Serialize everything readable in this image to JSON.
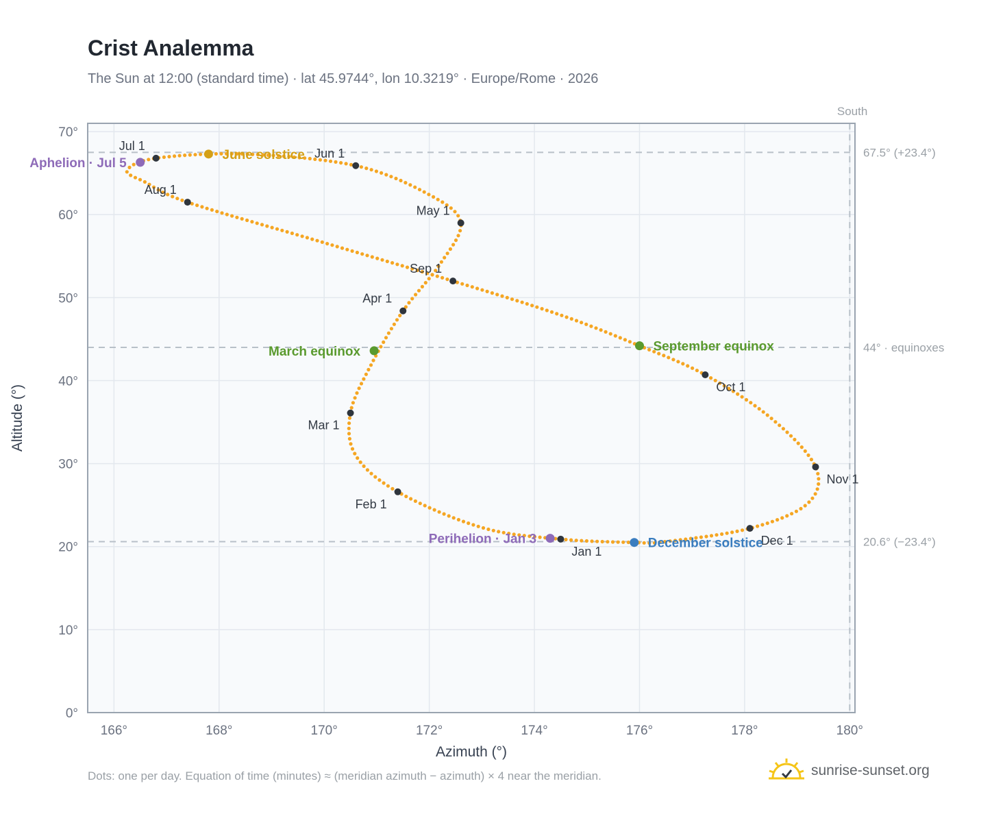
{
  "header": {
    "title": "Crist Analemma",
    "subtitle": "The Sun at 12:00 (standard time) · lat 45.9744°, lon 10.3219° · Europe/Rome · 2026"
  },
  "footer": {
    "note": "Dots: one per day. Equation of time (minutes) ≈ (meridian azimuth − azimuth) × 4 near the meridian.",
    "brand": "sunrise-sunset.org"
  },
  "chart_data": {
    "type": "scatter",
    "title": "Crist Analemma",
    "xlabel": "Azimuth (°)",
    "ylabel": "Altitude (°)",
    "xlim": [
      165.5,
      180.1
    ],
    "ylim": [
      0,
      71
    ],
    "xticks": [
      166,
      168,
      170,
      172,
      174,
      176,
      178,
      180
    ],
    "yticks": [
      0,
      10,
      20,
      30,
      40,
      50,
      60,
      70
    ],
    "x_tick_suffix": "°",
    "y_tick_suffix": "°",
    "grid": true,
    "colors": {
      "daily_dots": "#f5a623",
      "month_markers": "#2f353d",
      "june_solstice": "#d4a017",
      "december_solstice": "#3a7dbf",
      "equinox": "#5a9a2e",
      "apsis": "#8e6bb8",
      "reference_lines": "#b8c0c8",
      "plot_background": "#f8fafc"
    },
    "reference_lines": {
      "south": {
        "x": 180,
        "label": "South"
      },
      "june_solstice_altitude": {
        "y": 67.5,
        "label": "67.5° (+23.4°)"
      },
      "equinox_altitude": {
        "y": 44,
        "label": "44° · equinoxes"
      },
      "december_solstice_altitude": {
        "y": 20.6,
        "label": "20.6° (−23.4°)"
      }
    },
    "month_markers": [
      {
        "label": "Jan 1",
        "azimuth": 174.5,
        "altitude": 20.9,
        "label_pos": "below-right"
      },
      {
        "label": "Feb 1",
        "azimuth": 171.4,
        "altitude": 26.6,
        "label_pos": "below-left"
      },
      {
        "label": "Mar 1",
        "azimuth": 170.5,
        "altitude": 36.1,
        "label_pos": "below-left"
      },
      {
        "label": "Apr 1",
        "azimuth": 171.5,
        "altitude": 48.4,
        "label_pos": "above-left"
      },
      {
        "label": "May 1",
        "azimuth": 172.6,
        "altitude": 59.0,
        "label_pos": "above-left"
      },
      {
        "label": "Jun 1",
        "azimuth": 170.6,
        "altitude": 65.9,
        "label_pos": "above-left"
      },
      {
        "label": "Jul 1",
        "azimuth": 166.8,
        "altitude": 66.8,
        "label_pos": "above-left"
      },
      {
        "label": "Aug 1",
        "azimuth": 167.4,
        "altitude": 61.5,
        "label_pos": "above-left"
      },
      {
        "label": "Sep 1",
        "azimuth": 172.45,
        "altitude": 52.0,
        "label_pos": "above-left"
      },
      {
        "label": "Oct 1",
        "azimuth": 177.25,
        "altitude": 40.7,
        "label_pos": "below-right"
      },
      {
        "label": "Nov 1",
        "azimuth": 179.35,
        "altitude": 29.6,
        "label_pos": "below-right"
      },
      {
        "label": "Dec 1",
        "azimuth": 178.1,
        "altitude": 22.2,
        "label_pos": "below-right"
      }
    ],
    "events": [
      {
        "label": "June solstice",
        "azimuth": 167.8,
        "altitude": 67.3,
        "color": "#d4a017",
        "label_side": "right"
      },
      {
        "label": "December solstice",
        "azimuth": 175.9,
        "altitude": 20.5,
        "color": "#3a7dbf",
        "label_side": "right"
      },
      {
        "label": "March equinox",
        "azimuth": 170.95,
        "altitude": 43.6,
        "color": "#5a9a2e",
        "label_side": "left"
      },
      {
        "label": "September equinox",
        "azimuth": 176.0,
        "altitude": 44.2,
        "color": "#5a9a2e",
        "label_side": "right"
      },
      {
        "label": "Aphelion · Jul 5",
        "azimuth": 166.5,
        "altitude": 66.3,
        "color": "#8e6bb8",
        "label_side": "left"
      },
      {
        "label": "Perihelion · Jan 3",
        "azimuth": 174.3,
        "altitude": 21.0,
        "color": "#8e6bb8",
        "label_side": "left"
      }
    ],
    "series": [
      {
        "label": "daily positions",
        "points": [
          [
            174.5,
            20.9
          ],
          [
            173.0,
            22.3
          ],
          [
            171.4,
            26.6
          ],
          [
            170.6,
            31.0
          ],
          [
            170.5,
            36.1
          ],
          [
            170.9,
            42.0
          ],
          [
            171.5,
            48.4
          ],
          [
            172.2,
            54.0
          ],
          [
            172.6,
            59.0
          ],
          [
            172.0,
            62.4
          ],
          [
            170.6,
            65.9
          ],
          [
            168.5,
            67.3
          ],
          [
            166.8,
            66.8
          ],
          [
            166.25,
            65.3
          ],
          [
            166.6,
            63.9
          ],
          [
            167.4,
            61.5
          ],
          [
            169.9,
            56.8
          ],
          [
            172.45,
            52.0
          ],
          [
            174.5,
            47.9
          ],
          [
            176.0,
            44.2
          ],
          [
            177.25,
            40.7
          ],
          [
            178.5,
            35.5
          ],
          [
            179.35,
            29.6
          ],
          [
            179.2,
            25.2
          ],
          [
            178.1,
            22.2
          ],
          [
            176.5,
            20.6
          ],
          [
            175.9,
            20.5
          ],
          [
            174.5,
            20.9
          ]
        ]
      }
    ]
  }
}
